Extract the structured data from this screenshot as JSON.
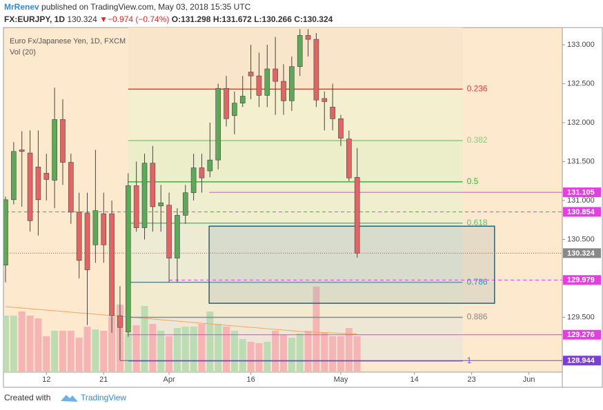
{
  "header": {
    "author": "MrRenev",
    "published": "published on TradingView.com, May 03, 2018 15:35 UTC",
    "symbol": "FX:EURJPY, 1D",
    "last": "130.324",
    "arrow": "▼",
    "change": "−0.974 (−0.74%)",
    "open": "O:131.298",
    "high": "H:131.672",
    "low": "L:130.266",
    "close": "C:130.324"
  },
  "footer": {
    "created": "Created with",
    "brand": "TradingView"
  },
  "chart_data": {
    "type": "candlestick",
    "title": "Euro Fx/Japanese Yen, 1D, FXCM",
    "subtitle": "Vol (20)",
    "xlim": [
      0,
      68
    ],
    "xticks": [
      {
        "value": 5,
        "label": "12"
      },
      {
        "value": 12,
        "label": "21"
      },
      {
        "value": 20,
        "label": "Apr"
      },
      {
        "value": 30,
        "label": "16"
      },
      {
        "value": 41,
        "label": "May"
      },
      {
        "value": 50,
        "label": "14"
      },
      {
        "value": 57,
        "label": "23"
      },
      {
        "value": 64,
        "label": "Jun"
      }
    ],
    "ylim": [
      128.796,
      133.221
    ],
    "yticks": [
      {
        "value": 133,
        "label": "133.000"
      },
      {
        "value": 132.5,
        "label": "132.500"
      },
      {
        "value": 132,
        "label": "132.000"
      },
      {
        "value": 131.5,
        "label": "131.500"
      },
      {
        "value": 131,
        "label": "131.000"
      },
      {
        "value": 130.5,
        "label": "130.500"
      },
      {
        "value": 129.5,
        "label": "129.500"
      }
    ],
    "up_color": "#5fa85a",
    "down_color": "#e06666",
    "x": [
      0,
      1,
      2,
      3,
      4,
      5,
      6,
      7,
      8,
      9,
      10,
      11,
      12,
      13,
      14,
      15,
      16,
      17,
      18,
      19,
      20,
      21,
      22,
      23,
      24,
      25,
      26,
      27,
      28,
      29,
      30,
      31,
      32,
      33,
      34,
      35,
      36,
      37,
      38,
      39,
      40,
      41,
      42,
      43
    ],
    "open": [
      130.17,
      131.01,
      131.65,
      131.61,
      131.43,
      131.35,
      131.26,
      132.04,
      131.49,
      130.85,
      130.84,
      130.43,
      130.83,
      130.83,
      129.52,
      129.31,
      131.19,
      130.65,
      131.48,
      130.93,
      130.94,
      130.26,
      130.81,
      131.1,
      131.42,
      131.38,
      131.52,
      132.44,
      132.09,
      132.25,
      132.65,
      132.6,
      132.35,
      132.69,
      132.53,
      132.28,
      132.72,
      133.12,
      133.07,
      132.31,
      132.2,
      132.05,
      131.79,
      131.298
    ],
    "high": [
      131.05,
      131.75,
      131.89,
      131.9,
      131.9,
      131.6,
      132.45,
      132.3,
      131.6,
      131.1,
      131.1,
      131.65,
      131.1,
      131.0,
      129.9,
      131.35,
      131.5,
      131.6,
      131.7,
      131.2,
      131.1,
      130.9,
      131.2,
      131.6,
      131.6,
      132.0,
      132.5,
      132.6,
      132.4,
      132.6,
      133.0,
      132.9,
      133.0,
      133.1,
      132.75,
      132.85,
      133.2,
      133.2,
      133.15,
      132.4,
      132.5,
      132.1,
      131.9,
      131.672
    ],
    "low": [
      129.95,
      130.95,
      130.92,
      130.6,
      130.55,
      131.0,
      130.9,
      131.2,
      130.7,
      130.0,
      129.4,
      130.2,
      130.2,
      129.3,
      128.95,
      129.25,
      130.6,
      130.5,
      130.6,
      130.6,
      129.95,
      129.95,
      130.7,
      131.0,
      131.1,
      131.3,
      131.4,
      131.95,
      131.85,
      132.2,
      132.3,
      132.2,
      132.2,
      132.1,
      132.1,
      132.15,
      132.6,
      132.85,
      132.2,
      131.9,
      131.9,
      131.7,
      131.25,
      130.266
    ],
    "close": [
      131.01,
      131.63,
      131.63,
      130.74,
      131.01,
      131.27,
      132.04,
      131.49,
      130.85,
      130.23,
      130.11,
      130.87,
      130.43,
      129.52,
      129.37,
      131.19,
      130.65,
      131.48,
      130.92,
      130.97,
      130.26,
      130.81,
      131.1,
      131.42,
      131.29,
      131.52,
      132.44,
      132.05,
      132.25,
      132.34,
      132.6,
      132.35,
      132.69,
      132.53,
      132.28,
      132.72,
      133.12,
      133.07,
      132.29,
      132.27,
      132.05,
      131.8,
      131.29,
      130.324
    ],
    "y2lim": [
      0,
      500
    ],
    "volume": [
      82,
      82,
      88,
      82,
      78,
      52,
      60,
      60,
      60,
      50,
      66,
      62,
      60,
      80,
      98,
      56,
      68,
      96,
      70,
      60,
      52,
      64,
      66,
      66,
      70,
      88,
      70,
      66,
      60,
      48,
      44,
      42,
      44,
      60,
      54,
      50,
      56,
      60,
      124,
      58,
      52,
      52,
      64,
      52
    ],
    "volume_up_color": "#bcdcb4",
    "volume_down_color": "#f5b5b5",
    "volume_ma": [
      95,
      94,
      93,
      92,
      91,
      90,
      89,
      88,
      87,
      86,
      85,
      84,
      83,
      82,
      81,
      80,
      79,
      78,
      77,
      76,
      75,
      74,
      73,
      72,
      71,
      70,
      69,
      68,
      67,
      66,
      65,
      64,
      63,
      62,
      61,
      60,
      59,
      58,
      58,
      57,
      57,
      56,
      56,
      55
    ],
    "volume_ma_color": "#f7a35c",
    "fib_x": [
      15,
      55.9
    ],
    "fib_levels": [
      {
        "ratio": 0.236,
        "price": 132.43,
        "color": "#e53935"
      },
      {
        "ratio": 0.382,
        "price": 131.77,
        "color": "#8fc97f"
      },
      {
        "ratio": 0.5,
        "price": 131.24,
        "color": "#2ebd2e"
      },
      {
        "ratio": 0.618,
        "price": 130.71,
        "color": "#5cbf77"
      },
      {
        "ratio": 0.786,
        "price": 129.95,
        "color": "#3d8fc4"
      },
      {
        "ratio": 0.886,
        "price": 129.5,
        "color": "#888888"
      },
      {
        "ratio": 1,
        "price": 128.94,
        "color": "#5b5bd6"
      }
    ],
    "price_lines": [
      {
        "value": 131.105,
        "x_start": 24.9,
        "style": "solid",
        "color": "#e040e0"
      },
      {
        "value": 130.854,
        "x_start": 0,
        "style": "dashed",
        "color": "#e040e0"
      },
      {
        "value": 129.979,
        "x_start": 20,
        "style": "dashed",
        "color": "#e040e0"
      },
      {
        "value": 129.276,
        "x_start": 15,
        "style": "solid",
        "color": "#e040e0"
      },
      {
        "value": 128.944,
        "x_start": 14,
        "style": "solid",
        "color": "#7a3fd0"
      },
      {
        "value": 130.324,
        "x_start": 0,
        "style": "dotted",
        "color": "#d04040",
        "label_color": "#888888"
      }
    ],
    "box": {
      "x": [
        24.9,
        59.8
      ],
      "y": [
        130.67,
        129.68
      ],
      "color": "#2f5f6f"
    }
  }
}
